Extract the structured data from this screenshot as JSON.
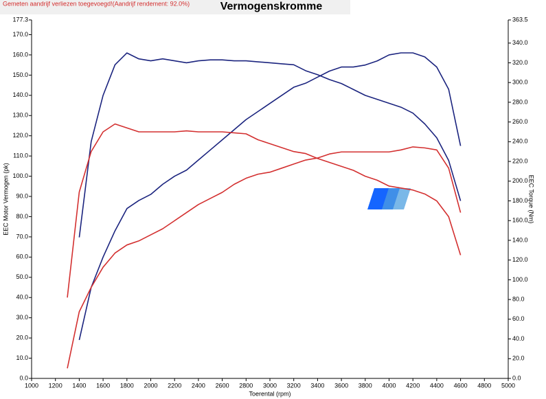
{
  "chart_data": {
    "type": "line",
    "title": "Vermogenskromme",
    "note": "Gemeten aandrijf verliezen toegevoegd!(Aandrijf rendement: 92.0%)",
    "x_label": "Toerental (rpm)",
    "y_label": "EEC Motor Vermogen (pk)",
    "y2_label": "EEC Torque (Nm)",
    "x": [
      1300,
      1400,
      1500,
      1600,
      1700,
      1800,
      1900,
      2000,
      2100,
      2200,
      2300,
      2400,
      2500,
      2600,
      2700,
      2800,
      2900,
      3000,
      3100,
      3200,
      3300,
      3400,
      3500,
      3600,
      3700,
      3800,
      3900,
      4000,
      4100,
      4200,
      4300,
      4400,
      4500,
      4600
    ],
    "series": [
      {
        "color": "#1a237e",
        "axis": "y",
        "values": [
          null,
          19,
          45,
          60,
          73,
          84,
          88,
          91,
          96,
          100,
          103,
          108,
          113,
          118,
          123,
          128,
          132,
          136,
          140,
          144,
          146,
          149,
          152,
          154,
          154,
          155,
          157,
          160,
          161,
          161,
          159,
          154,
          143,
          115
        ]
      },
      {
        "color": "#1a237e",
        "axis": "y2",
        "values": [
          null,
          143,
          240,
          287,
          318,
          330,
          324,
          322,
          324,
          322,
          320,
          322,
          323,
          323,
          322,
          322,
          321,
          320,
          319,
          318,
          312,
          308,
          303,
          299,
          293,
          287,
          283,
          279,
          275,
          269,
          258,
          244,
          221,
          180
        ]
      },
      {
        "color": "#d32f2f",
        "axis": "y",
        "values": [
          5,
          33,
          45,
          55,
          62,
          66,
          68,
          71,
          74,
          78,
          82,
          86,
          89,
          92,
          96,
          99,
          101,
          102,
          104,
          106,
          108,
          109,
          111,
          112,
          112,
          112,
          112,
          112,
          113,
          114.5,
          114,
          113,
          104,
          82
        ]
      },
      {
        "color": "#d32f2f",
        "axis": "y2",
        "values": [
          82,
          189,
          230,
          250,
          258,
          254,
          250,
          250,
          250,
          250,
          251,
          250,
          250,
          250,
          249,
          248,
          242,
          238,
          234,
          230,
          228,
          223,
          219,
          215,
          211,
          205,
          201,
          195,
          193,
          191,
          187,
          180,
          164,
          125
        ]
      }
    ],
    "xlim": [
      1000,
      5000
    ],
    "xticks": [
      1000,
      1200,
      1400,
      1600,
      1800,
      2000,
      2200,
      2400,
      2600,
      2800,
      3000,
      3200,
      3400,
      3600,
      3800,
      4000,
      4200,
      4400,
      4600,
      4800,
      5000
    ],
    "ylim": [
      0,
      177.3
    ],
    "yticks": [
      {
        "value": 0,
        "label": "0.0"
      },
      {
        "value": 10,
        "label": "10.0"
      },
      {
        "value": 20,
        "label": "20.0"
      },
      {
        "value": 30,
        "label": "30.0"
      },
      {
        "value": 40,
        "label": "40.0"
      },
      {
        "value": 50,
        "label": "50.0"
      },
      {
        "value": 60,
        "label": "60.0"
      },
      {
        "value": 70,
        "label": "70.0"
      },
      {
        "value": 80,
        "label": "80.0"
      },
      {
        "value": 90,
        "label": "90.0"
      },
      {
        "value": 100,
        "label": "100.0"
      },
      {
        "value": 110,
        "label": "110.0"
      },
      {
        "value": 120,
        "label": "120.0"
      },
      {
        "value": 130,
        "label": "130.0"
      },
      {
        "value": 140,
        "label": "140.0"
      },
      {
        "value": 150,
        "label": "150.0"
      },
      {
        "value": 160,
        "label": "160.0"
      },
      {
        "value": 170,
        "label": "170.0"
      },
      177.3
    ],
    "y2lim": [
      0,
      363.5
    ],
    "y2ticks": [
      {
        "value": 0,
        "label": "0.0"
      },
      {
        "value": 20,
        "label": "20.0"
      },
      {
        "value": 40,
        "label": "40.0"
      },
      {
        "value": 60,
        "label": "60.0"
      },
      {
        "value": 80,
        "label": "80.0"
      },
      {
        "value": 100,
        "label": "100.0"
      },
      {
        "value": 120,
        "label": "120.0"
      },
      {
        "value": 140,
        "label": "140.0"
      },
      {
        "value": 160,
        "label": "160.0"
      },
      {
        "value": 180,
        "label": "180.0"
      },
      {
        "value": 200,
        "label": "200.0"
      },
      {
        "value": 220,
        "label": "220.0"
      },
      {
        "value": 240,
        "label": "240.0"
      },
      {
        "value": 260,
        "label": "260.0"
      },
      {
        "value": 280,
        "label": "280.0"
      },
      {
        "value": 300,
        "label": "300.0"
      },
      {
        "value": 320,
        "label": "320.0"
      },
      {
        "value": 340,
        "label": "340.0"
      },
      363.5
    ]
  }
}
